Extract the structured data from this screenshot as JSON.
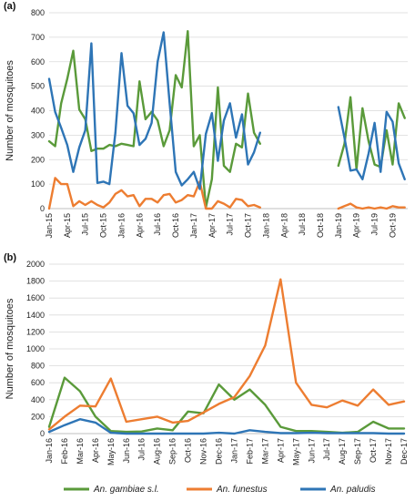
{
  "chart_data": [
    {
      "panel": "(a)",
      "type": "line",
      "ylabel": "Number of mosquitoes",
      "xlabel": "",
      "ylim": [
        0,
        800
      ],
      "yticks": [
        0,
        100,
        200,
        300,
        400,
        500,
        600,
        700,
        800
      ],
      "xticks": [
        "Jan-15",
        "Apr-15",
        "Jul-15",
        "Oct-15",
        "Jan-16",
        "Apr-16",
        "Jul-16",
        "Oct-16",
        "Jan-17",
        "Apr-17",
        "Jul-17",
        "Oct-17",
        "Jan-18",
        "Apr-18",
        "Jul-18",
        "Oct-18",
        "Jan-19",
        "Apr-19",
        "Jul-19",
        "Oct-19"
      ],
      "grid": "horizontal",
      "series": [
        {
          "name": "An. gambiae s.l.",
          "color": "#5a9a3a",
          "segments": [
            [
              [
                0,
                275
              ],
              [
                1,
                255
              ],
              [
                2,
                430
              ],
              [
                3,
                530
              ],
              [
                4,
                645
              ],
              [
                5,
                405
              ],
              [
                6,
                365
              ],
              [
                7,
                235
              ],
              [
                8,
                245
              ],
              [
                9,
                245
              ],
              [
                10,
                260
              ],
              [
                11,
                255
              ],
              [
                12,
                265
              ],
              [
                13,
                260
              ],
              [
                14,
                255
              ],
              [
                15,
                520
              ],
              [
                16,
                365
              ],
              [
                17,
                395
              ],
              [
                18,
                360
              ],
              [
                19,
                255
              ],
              [
                20,
                320
              ],
              [
                21,
                545
              ],
              [
                22,
                495
              ],
              [
                23,
                725
              ],
              [
                24,
                255
              ],
              [
                25,
                300
              ],
              [
                26,
                5
              ],
              [
                27,
                120
              ],
              [
                28,
                495
              ],
              [
                29,
                175
              ],
              [
                30,
                150
              ],
              [
                31,
                265
              ],
              [
                32,
                250
              ],
              [
                33,
                470
              ],
              [
                34,
                310
              ],
              [
                35,
                265
              ]
            ],
            [
              [
                48,
                175
              ],
              [
                49,
                265
              ],
              [
                50,
                455
              ],
              [
                51,
                160
              ],
              [
                52,
                410
              ],
              [
                53,
                275
              ],
              [
                54,
                180
              ],
              [
                55,
                170
              ],
              [
                56,
                320
              ],
              [
                57,
                180
              ],
              [
                58,
                430
              ],
              [
                59,
                370
              ]
            ]
          ]
        },
        {
          "name": "An. funestus",
          "color": "#ed7d31",
          "segments": [
            [
              [
                0,
                0
              ],
              [
                1,
                125
              ],
              [
                2,
                100
              ],
              [
                3,
                100
              ],
              [
                4,
                10
              ],
              [
                5,
                30
              ],
              [
                6,
                15
              ],
              [
                7,
                30
              ],
              [
                8,
                15
              ],
              [
                9,
                5
              ],
              [
                10,
                25
              ],
              [
                11,
                60
              ],
              [
                12,
                75
              ],
              [
                13,
                50
              ],
              [
                14,
                55
              ],
              [
                15,
                10
              ],
              [
                16,
                40
              ],
              [
                17,
                40
              ],
              [
                18,
                25
              ],
              [
                19,
                55
              ],
              [
                20,
                60
              ],
              [
                21,
                25
              ],
              [
                22,
                35
              ],
              [
                23,
                55
              ],
              [
                24,
                50
              ],
              [
                25,
                110
              ],
              [
                26,
                0
              ],
              [
                27,
                0
              ],
              [
                28,
                30
              ],
              [
                29,
                20
              ],
              [
                30,
                5
              ],
              [
                31,
                40
              ],
              [
                32,
                35
              ],
              [
                33,
                10
              ],
              [
                34,
                15
              ],
              [
                35,
                5
              ]
            ],
            [
              [
                48,
                0
              ],
              [
                49,
                10
              ],
              [
                50,
                20
              ],
              [
                51,
                5
              ],
              [
                52,
                0
              ],
              [
                53,
                5
              ],
              [
                54,
                0
              ],
              [
                55,
                5
              ],
              [
                56,
                0
              ],
              [
                57,
                10
              ],
              [
                58,
                5
              ],
              [
                59,
                5
              ]
            ]
          ]
        },
        {
          "name": "An. paludis",
          "color": "#2e75b6",
          "segments": [
            [
              [
                0,
                530
              ],
              [
                1,
                395
              ],
              [
                2,
                330
              ],
              [
                3,
                260
              ],
              [
                4,
                150
              ],
              [
                5,
                250
              ],
              [
                6,
                320
              ],
              [
                7,
                675
              ],
              [
                8,
                105
              ],
              [
                9,
                110
              ],
              [
                10,
                100
              ],
              [
                11,
                310
              ],
              [
                12,
                635
              ],
              [
                13,
                420
              ],
              [
                14,
                390
              ],
              [
                15,
                260
              ],
              [
                16,
                285
              ],
              [
                17,
                350
              ],
              [
                18,
                600
              ],
              [
                19,
                720
              ],
              [
                20,
                430
              ],
              [
                21,
                150
              ],
              [
                22,
                95
              ],
              [
                23,
                120
              ],
              [
                24,
                150
              ],
              [
                25,
                80
              ],
              [
                26,
                305
              ],
              [
                27,
                390
              ],
              [
                28,
                195
              ],
              [
                29,
                360
              ],
              [
                30,
                430
              ],
              [
                31,
                290
              ],
              [
                32,
                385
              ],
              [
                33,
                180
              ],
              [
                34,
                230
              ],
              [
                35,
                310
              ]
            ],
            [
              [
                48,
                415
              ],
              [
                49,
                290
              ],
              [
                50,
                155
              ],
              [
                51,
                160
              ],
              [
                52,
                120
              ],
              [
                53,
                225
              ],
              [
                54,
                350
              ],
              [
                55,
                150
              ],
              [
                56,
                395
              ],
              [
                57,
                355
              ],
              [
                58,
                185
              ],
              [
                59,
                120
              ]
            ]
          ]
        }
      ]
    },
    {
      "panel": "(b)",
      "type": "line",
      "ylabel": "Number of mosquitoes",
      "xlabel": "",
      "ylim": [
        0,
        2000
      ],
      "yticks": [
        0,
        200,
        400,
        600,
        800,
        1000,
        1200,
        1400,
        1600,
        1800,
        2000
      ],
      "categories": [
        "Jan-16",
        "Feb-16",
        "Mar-16",
        "Apr-16",
        "May-16",
        "Jun-16",
        "Jul-16",
        "Aug-16",
        "Sep-16",
        "Oct-16",
        "Nov-16",
        "Dec-16",
        "Jan-17",
        "Feb-17",
        "Mar-17",
        "Apr-17",
        "May-17",
        "Jun-17",
        "Jul-17",
        "Aug-17",
        "Sep-17",
        "Oct-17",
        "Nov-17",
        "Dec-17"
      ],
      "grid": "horizontal",
      "series": [
        {
          "name": "An. gambiae s.l.",
          "color": "#5a9a3a",
          "values": [
            80,
            660,
            500,
            200,
            30,
            20,
            25,
            60,
            40,
            260,
            240,
            580,
            400,
            520,
            340,
            80,
            30,
            30,
            20,
            10,
            20,
            140,
            60,
            60
          ]
        },
        {
          "name": "An. funestus",
          "color": "#ed7d31",
          "values": [
            50,
            200,
            330,
            320,
            650,
            140,
            170,
            200,
            130,
            150,
            250,
            350,
            430,
            680,
            1040,
            1820,
            600,
            340,
            310,
            390,
            330,
            520,
            340,
            380
          ]
        },
        {
          "name": "An. paludis",
          "color": "#2e75b6",
          "values": [
            20,
            100,
            170,
            130,
            10,
            0,
            0,
            0,
            0,
            0,
            0,
            10,
            0,
            40,
            20,
            5,
            5,
            10,
            5,
            5,
            5,
            5,
            0,
            0
          ]
        }
      ]
    }
  ],
  "legend": {
    "placement": "bottom",
    "items": [
      {
        "label": "An. gambiae s.l.",
        "color": "#5a9a3a"
      },
      {
        "label": "An. funestus",
        "color": "#ed7d31"
      },
      {
        "label": "An. paludis",
        "color": "#2e75b6"
      }
    ]
  }
}
